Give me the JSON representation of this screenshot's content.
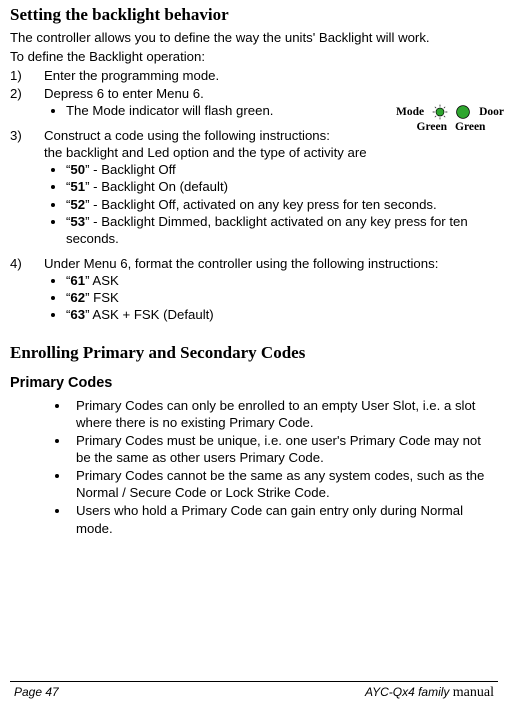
{
  "title_backlight": "Setting the backlight behavior",
  "intro1": "The controller allows you to define the way the units' Backlight will work.",
  "intro2": "To define the Backlight operation:",
  "steps": {
    "s1": {
      "num": "1)",
      "text": "Enter the programming mode."
    },
    "s2": {
      "num": "2)",
      "text": "Depress 6 to enter Menu 6.",
      "sub": [
        "The Mode indicator will flash green."
      ]
    },
    "s3": {
      "num": "3)",
      "line1": "Construct a code using the following instructions:",
      "line2": "the backlight and Led option and the type of activity are",
      "codes": [
        {
          "pre": "“",
          "code": "50",
          "post": "” - Backlight Off"
        },
        {
          "pre": "“",
          "code": "51",
          "post": "” - Backlight On (default)"
        },
        {
          "pre": "“",
          "code": "52",
          "post": "” - Backlight Off, activated on any key press for ten seconds."
        },
        {
          "pre": "“",
          "code": "53",
          "post": "” - Backlight Dimmed, backlight activated on any key press for ten seconds."
        }
      ]
    },
    "s4": {
      "num": "4)",
      "text": "Under Menu 6, format the controller using the following instructions:",
      "codes": [
        {
          "pre": "“",
          "code": "61",
          "post": "” ASK"
        },
        {
          "pre": "“",
          "code": "62",
          "post": "” FSK"
        },
        {
          "pre": "“",
          "code": "63",
          "post": "” ASK + FSK (Default)"
        }
      ]
    }
  },
  "inset": {
    "mode_label": "Mode",
    "door_label": "Door",
    "green1": "Green",
    "green2": "Green",
    "led_mode": {
      "fill": "#2fa52f",
      "stroke": "#000000",
      "flash": true
    },
    "led_door": {
      "fill": "#2fa52f",
      "stroke": "#000000",
      "flash": false
    }
  },
  "title_enroll": "Enrolling Primary and Secondary Codes",
  "subtitle_primary": "Primary Codes",
  "primary_bullets": [
    "Primary Codes can only be enrolled to an empty User Slot, i.e. a slot where there is no existing Primary Code.",
    "Primary Codes must be unique, i.e. one user's Primary Code may not be the same as other users Primary Code.",
    "Primary Codes cannot be the same as any system codes, such as the Normal / Secure Code or Lock Strike Code.",
    "Users who hold a Primary Code can gain entry only during Normal mode."
  ],
  "footer": {
    "page": "Page 47",
    "model": "AYC-Qx4",
    "family": " family ",
    "manual": "manual"
  }
}
